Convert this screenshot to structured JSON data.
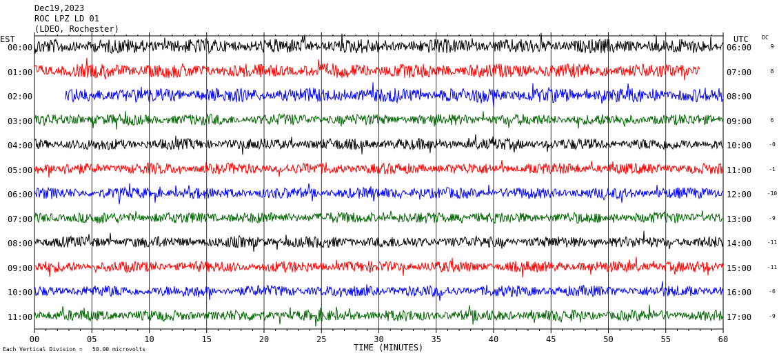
{
  "header": {
    "date": "Dec19,2023",
    "station": "ROC LPZ LD 01",
    "network": "(LDEO, Rochester)"
  },
  "left_tz": "EST",
  "right_tz": "UTC",
  "dc_label": "DC",
  "footer": {
    "scale_note": "Each Vertical Division =   50.00 microvolts",
    "xlabel": "TIME (MINUTES)"
  },
  "colors": {
    "black": "#000000",
    "red": "#ff0000",
    "blue": "#0000ff",
    "green": "#006400"
  },
  "chart_data": {
    "type": "line",
    "title": "Dec19,2023 ROC LPZ LD 01 (LDEO, Rochester)",
    "xlabel": "TIME (MINUTES)",
    "xlim": [
      0,
      60
    ],
    "x_ticks": [
      "00",
      "05",
      "10",
      "15",
      "20",
      "25",
      "30",
      "35",
      "40",
      "45",
      "50",
      "55",
      "60"
    ],
    "grid": true,
    "rows": [
      {
        "est": "00:00",
        "utc": "06:00",
        "dc": "9",
        "color": "black",
        "start_min": 0,
        "end_min": 60
      },
      {
        "est": "01:00",
        "utc": "07:00",
        "dc": "8",
        "color": "red",
        "start_min": 0,
        "end_min": 58
      },
      {
        "est": "02:00",
        "utc": "08:00",
        "dc": "",
        "color": "blue",
        "start_min": 2.7,
        "end_min": 60
      },
      {
        "est": "03:00",
        "utc": "09:00",
        "dc": "6",
        "color": "green",
        "start_min": 0,
        "end_min": 60
      },
      {
        "est": "04:00",
        "utc": "10:00",
        "dc": "-0",
        "color": "black",
        "start_min": 0,
        "end_min": 60
      },
      {
        "est": "05:00",
        "utc": "11:00",
        "dc": "-1",
        "color": "red",
        "start_min": 0,
        "end_min": 60
      },
      {
        "est": "06:00",
        "utc": "12:00",
        "dc": "-10",
        "color": "blue",
        "start_min": 0,
        "end_min": 60
      },
      {
        "est": "07:00",
        "utc": "13:00",
        "dc": "-9",
        "color": "green",
        "start_min": 0,
        "end_min": 60
      },
      {
        "est": "08:00",
        "utc": "14:00",
        "dc": "-11",
        "color": "black",
        "start_min": 0,
        "end_min": 60
      },
      {
        "est": "09:00",
        "utc": "15:00",
        "dc": "-11",
        "color": "red",
        "start_min": 0,
        "end_min": 60
      },
      {
        "est": "10:00",
        "utc": "16:00",
        "dc": "-6",
        "color": "blue",
        "start_min": 0,
        "end_min": 60
      },
      {
        "est": "11:00",
        "utc": "17:00",
        "dc": "-9",
        "color": "green",
        "start_min": 0,
        "end_min": 60
      }
    ]
  }
}
